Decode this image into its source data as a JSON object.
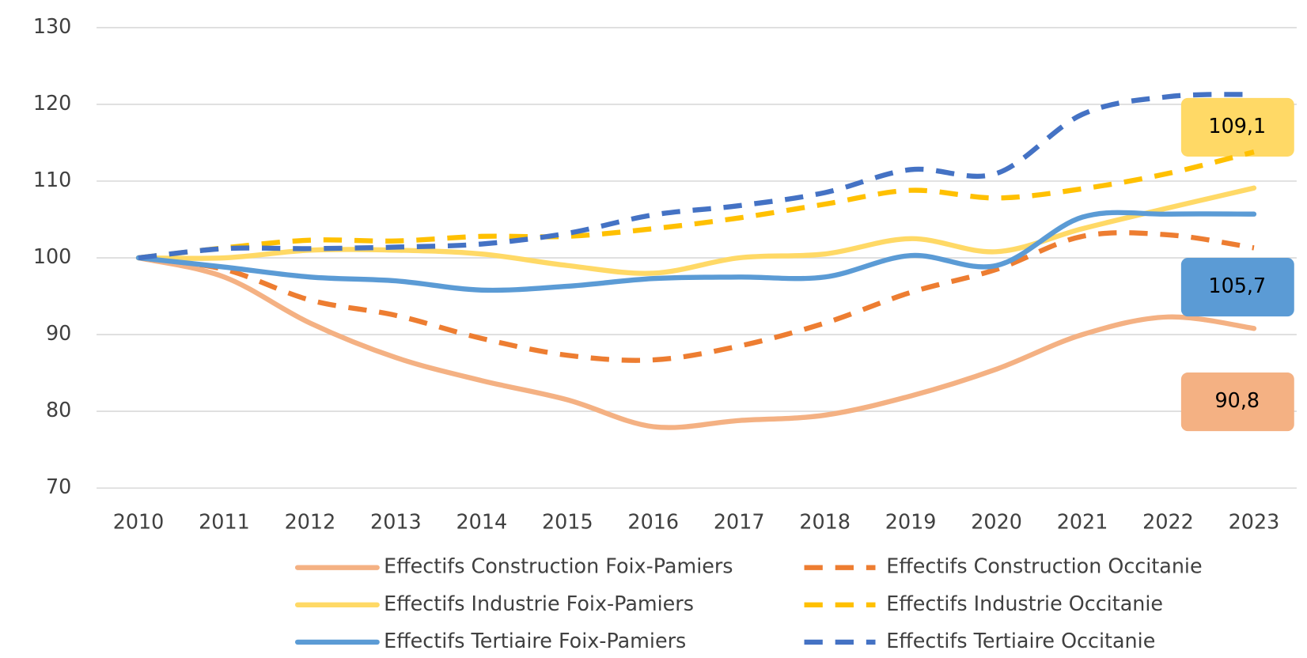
{
  "chart_data": {
    "type": "line",
    "categories": [
      "2010",
      "2011",
      "2012",
      "2013",
      "2014",
      "2015",
      "2016",
      "2017",
      "2018",
      "2019",
      "2020",
      "2021",
      "2022",
      "2023"
    ],
    "ylim": [
      70,
      130
    ],
    "yticks": [
      70,
      80,
      90,
      100,
      110,
      120,
      130
    ],
    "grid": true,
    "series": [
      {
        "name": "Effectifs Construction Foix-Pamiers",
        "color": "#f4b183",
        "dashed": false,
        "values": [
          100,
          97.5,
          91.5,
          87,
          84,
          81.5,
          78,
          78.8,
          79.5,
          82,
          85.5,
          90,
          92.3,
          90.8
        ],
        "value_labels": [
          null,
          null,
          null,
          null,
          null,
          null,
          null,
          null,
          null,
          null,
          null,
          null,
          null,
          "90,8"
        ]
      },
      {
        "name": "Effectifs Construction Occitanie",
        "color": "#ed7d31",
        "dashed": true,
        "values": [
          100,
          98.5,
          94.5,
          92.5,
          89.5,
          87.3,
          86.7,
          88.5,
          91.5,
          95.5,
          98.5,
          102.8,
          103,
          101.3
        ]
      },
      {
        "name": "Effectifs Industrie Foix-Pamiers",
        "color": "#ffd966",
        "dashed": false,
        "values": [
          100,
          100,
          101,
          101,
          100.5,
          99,
          98,
          100,
          100.5,
          102.5,
          100.8,
          103.8,
          106.5,
          109.1
        ],
        "value_labels": [
          null,
          null,
          null,
          null,
          null,
          null,
          null,
          null,
          null,
          null,
          null,
          null,
          null,
          "109,1"
        ]
      },
      {
        "name": "Effectifs Industrie Occitanie",
        "color": "#ffc000",
        "dashed": true,
        "values": [
          100,
          101.3,
          102.3,
          102.2,
          102.8,
          102.8,
          103.8,
          105.2,
          107,
          108.8,
          107.8,
          109,
          111,
          113.8
        ]
      },
      {
        "name": "Effectifs Tertiaire Foix-Pamiers",
        "color": "#5b9bd5",
        "dashed": false,
        "values": [
          100,
          98.8,
          97.5,
          97,
          95.8,
          96.3,
          97.3,
          97.5,
          97.5,
          100.3,
          99,
          105.3,
          105.7,
          105.7
        ],
        "value_labels": [
          null,
          null,
          null,
          null,
          null,
          null,
          null,
          null,
          null,
          null,
          null,
          null,
          null,
          "105,7"
        ]
      },
      {
        "name": "Effectifs Tertiaire Occitanie",
        "color": "#4472c4",
        "dashed": true,
        "values": [
          100,
          101.2,
          101.2,
          101.4,
          101.8,
          103.2,
          105.6,
          106.8,
          108.5,
          111.5,
          111,
          118.7,
          121,
          121.3
        ]
      }
    ]
  }
}
